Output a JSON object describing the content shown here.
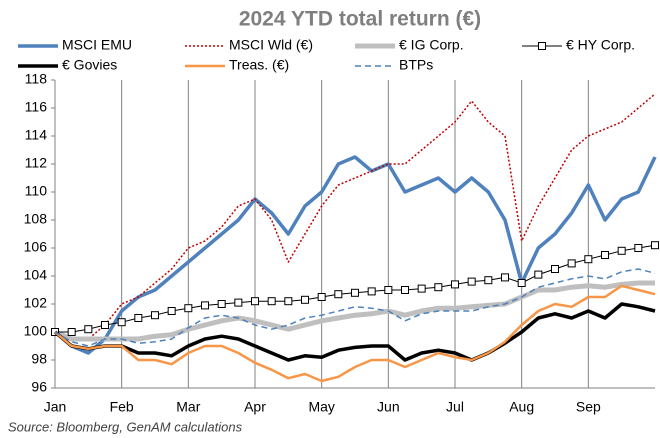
{
  "chart_data": {
    "type": "line",
    "title": "2024 YTD total return (€)",
    "source": "Source: Bloomberg, GenAM calculations",
    "categories": [
      "Jan",
      null,
      null,
      null,
      "Feb",
      null,
      null,
      null,
      "Mar",
      null,
      null,
      null,
      "Apr",
      null,
      null,
      null,
      "May",
      null,
      null,
      null,
      "Jun",
      null,
      null,
      null,
      "Jul",
      null,
      null,
      null,
      "Aug",
      null,
      null,
      null,
      "Sep",
      null,
      null,
      null,
      null
    ],
    "ylim": [
      96,
      118
    ],
    "yticks": [
      96,
      98,
      100,
      102,
      104,
      106,
      108,
      110,
      112,
      114,
      116,
      118
    ],
    "grid": true,
    "series": [
      {
        "name": "MSCI EMU",
        "color": "#4f81bd",
        "width": 3.5,
        "style": "solid",
        "values": [
          100,
          99,
          98.5,
          99.5,
          101.5,
          102.5,
          103,
          104,
          105,
          106,
          107,
          108,
          109.5,
          108.5,
          107,
          109,
          110,
          112,
          112.5,
          111.5,
          112,
          110,
          110.5,
          111,
          110,
          111,
          110,
          108,
          103.5,
          106,
          107,
          108.5,
          110.5,
          108,
          109.5,
          110,
          112.5
        ]
      },
      {
        "name": "MSCI Wld (€)",
        "color": "#c00000",
        "width": 1.5,
        "style": "dotted",
        "values": [
          100,
          99.5,
          99.5,
          100.5,
          102,
          102.5,
          103.5,
          104.5,
          106,
          106.5,
          107.5,
          109,
          109.5,
          108,
          105,
          107,
          109,
          110.5,
          111,
          111.5,
          112,
          112,
          113,
          114,
          115,
          116.5,
          115,
          114,
          106.5,
          109,
          111,
          113,
          114,
          114.5,
          115,
          116,
          117
        ]
      },
      {
        "name": "€ IG Corp.",
        "color": "#bfbfbf",
        "width": 5,
        "style": "solid",
        "values": [
          100,
          99.5,
          99.5,
          99.5,
          99.5,
          99.5,
          99.7,
          99.8,
          100.2,
          100.5,
          100.8,
          101,
          100.8,
          100.5,
          100.2,
          100.5,
          100.8,
          101,
          101.2,
          101.3,
          101.5,
          101.2,
          101.5,
          101.7,
          101.7,
          101.8,
          101.9,
          102,
          102.5,
          103,
          103,
          103.2,
          103.3,
          103.2,
          103.4,
          103.5,
          103.5
        ]
      },
      {
        "name": "€ HY Corp.",
        "color": "#000000",
        "width": 1,
        "style": "solid",
        "marker": "square",
        "values": [
          100,
          100,
          100.2,
          100.5,
          100.7,
          101,
          101.2,
          101.5,
          101.7,
          101.9,
          102,
          102.1,
          102.2,
          102.2,
          102.2,
          102.3,
          102.5,
          102.7,
          102.8,
          102.9,
          103,
          103,
          103.1,
          103.2,
          103.4,
          103.6,
          103.7,
          103.9,
          103.5,
          104.1,
          104.5,
          104.9,
          105.2,
          105.5,
          105.8,
          106,
          106.2
        ]
      },
      {
        "name": "€ Govies",
        "color": "#000000",
        "width": 3.5,
        "style": "solid",
        "values": [
          100,
          99,
          98.8,
          99,
          99,
          98.5,
          98.5,
          98.3,
          99,
          99.5,
          99.7,
          99.5,
          99,
          98.5,
          98,
          98.3,
          98.2,
          98.7,
          98.9,
          99,
          99,
          98,
          98.5,
          98.7,
          98.5,
          98,
          98.5,
          99.2,
          100,
          101,
          101.3,
          101,
          101.5,
          101,
          102,
          101.8,
          101.5
        ]
      },
      {
        "name": "Treas. (€)",
        "color": "#f79646",
        "width": 2.5,
        "style": "solid",
        "values": [
          100,
          99,
          98.8,
          99,
          99,
          98,
          98,
          97.7,
          98.5,
          99,
          99,
          98.5,
          97.8,
          97.3,
          96.7,
          97,
          96.5,
          96.8,
          97.5,
          98,
          98,
          97.5,
          98,
          98.5,
          98.2,
          98,
          98.5,
          99.3,
          100.5,
          101.5,
          102,
          101.8,
          102.5,
          102.5,
          103.3,
          103,
          102.7
        ]
      },
      {
        "name": "BTPs",
        "color": "#4f81bd",
        "width": 1.5,
        "style": "dashed",
        "values": [
          100,
          99.3,
          99,
          99.5,
          99.5,
          99.2,
          99.3,
          99.5,
          100.3,
          101,
          101.2,
          101,
          100.5,
          100.2,
          100.5,
          101,
          101.2,
          101.5,
          101.8,
          101.7,
          101.5,
          100.8,
          101.3,
          101.5,
          101.5,
          101.5,
          101.8,
          102,
          102.5,
          103.2,
          103.5,
          103.8,
          104,
          103.8,
          104.3,
          104.5,
          104.2
        ]
      }
    ]
  }
}
